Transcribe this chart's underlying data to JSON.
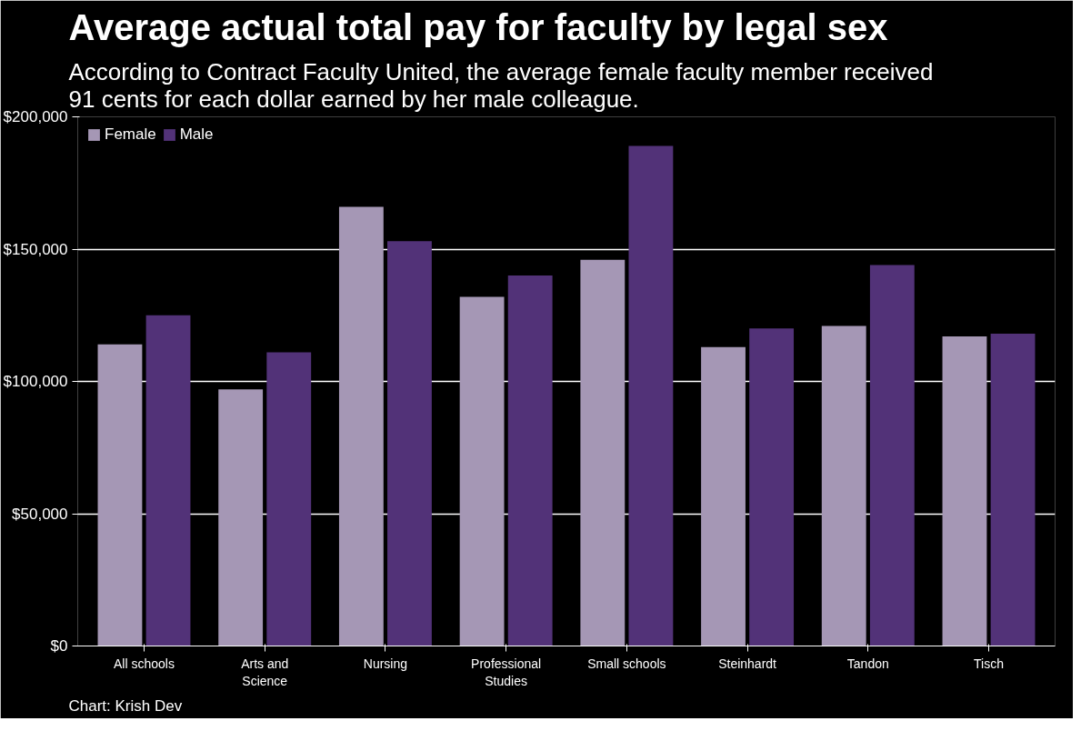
{
  "chart_data": {
    "type": "bar",
    "title": "Average actual total pay for faculty by legal sex",
    "subtitle": "According to Contract Faculty United, the average female faculty member received 91 cents for each dollar earned by her male colleague.",
    "categories": [
      "All schools",
      "Arts and Science",
      "Nursing",
      "Professional Studies",
      "Small schools",
      "Steinhardt",
      "Tandon",
      "Tisch"
    ],
    "series": [
      {
        "name": "Female",
        "color": "#a597b5",
        "values": [
          114000,
          97000,
          166000,
          132000,
          146000,
          113000,
          121000,
          117000
        ]
      },
      {
        "name": "Male",
        "color": "#523278",
        "values": [
          125000,
          111000,
          153000,
          140000,
          189000,
          120000,
          144000,
          118000
        ]
      }
    ],
    "ylim": [
      0,
      200000
    ],
    "yticks": [
      {
        "value": 0,
        "label": "$0"
      },
      {
        "value": 50000,
        "label": "$50,000"
      },
      {
        "value": 100000,
        "label": "$100,000"
      },
      {
        "value": 150000,
        "label": "$150,000"
      },
      {
        "value": 200000,
        "label": "$200,000"
      }
    ],
    "grid": "y",
    "legend": "top left",
    "annotations": [
      "Chart: Krish Dev"
    ]
  }
}
